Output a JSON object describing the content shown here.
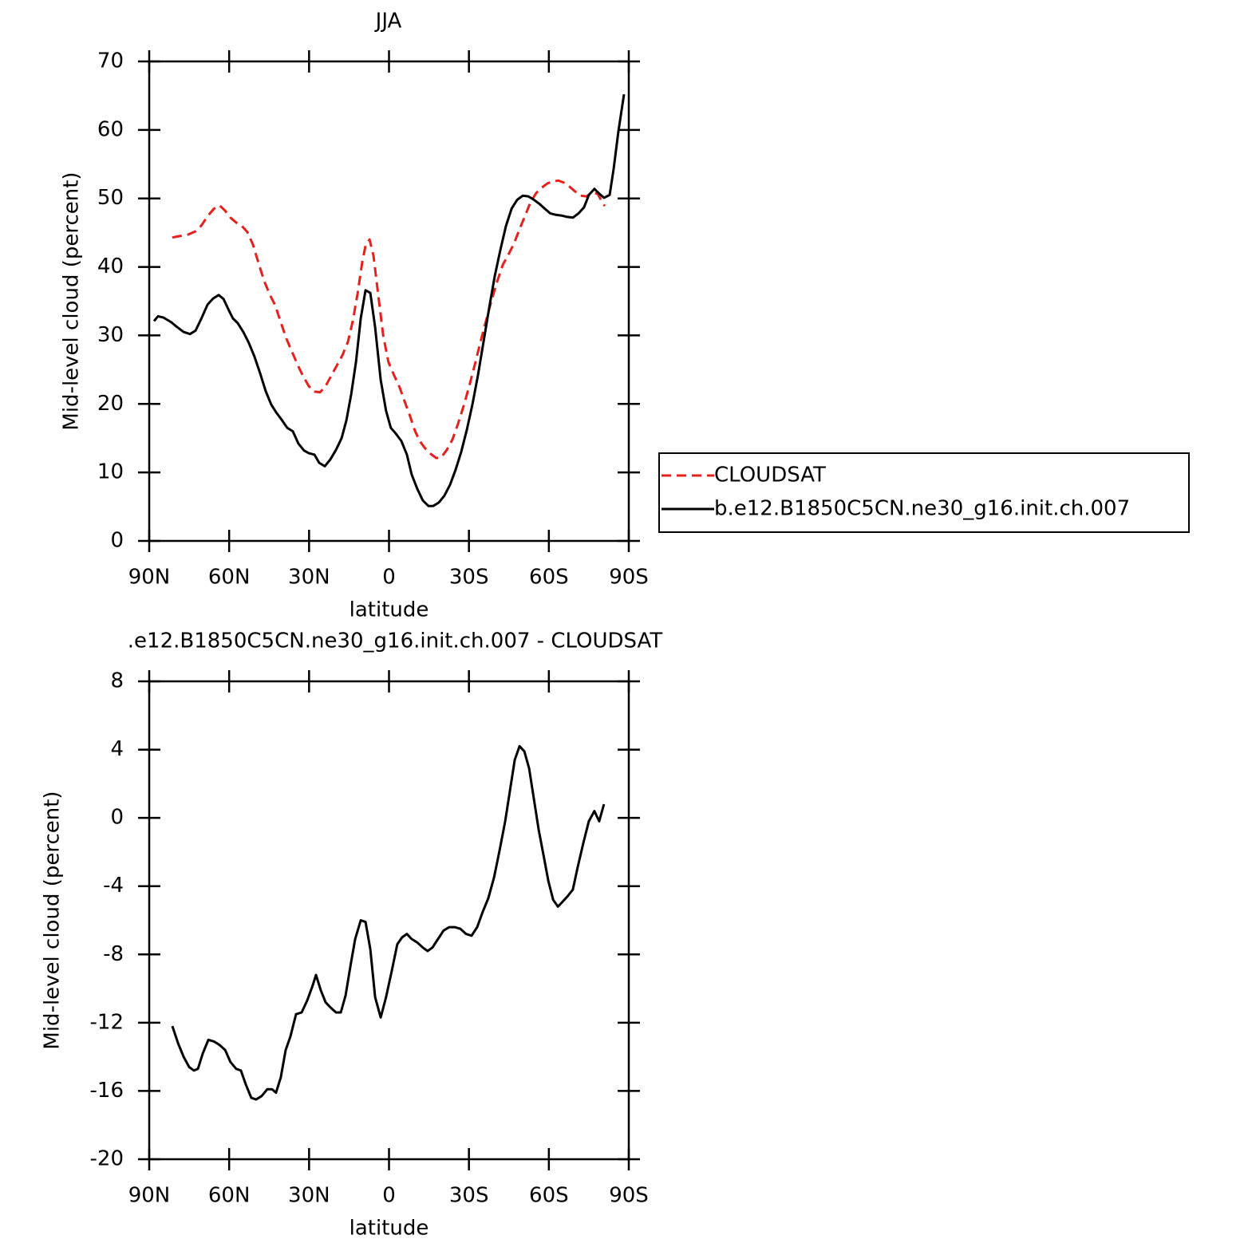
{
  "chart_data": [
    {
      "type": "line",
      "title": "JJA",
      "xlabel": "latitude",
      "ylabel": "Mid-level cloud (percent)",
      "xlim": [
        90,
        -90
      ],
      "xticks": [
        {
          "value": 90,
          "label": "90N"
        },
        {
          "value": 60,
          "label": "60N"
        },
        {
          "value": 30,
          "label": "30N"
        },
        0,
        {
          "value": -30,
          "label": "30S"
        },
        {
          "value": -60,
          "label": "60S"
        },
        {
          "value": -90,
          "label": "90S"
        }
      ],
      "ylim": [
        0,
        70
      ],
      "yticks": [
        0,
        10,
        20,
        30,
        40,
        50,
        60,
        70
      ],
      "legend": "right",
      "series": [
        {
          "name": "CLOUDSAT",
          "color": "#e8201c",
          "dash": "dashed",
          "x": [
            81.3,
            78.6,
            75.6,
            72.6,
            70.5,
            68.1,
            65.7,
            63.6,
            61.5,
            59.5,
            57.4,
            55.3,
            53.2,
            51.1,
            49.0,
            46.9,
            44.8,
            42.7,
            40.6,
            38.5,
            36.4,
            34.3,
            32.2,
            30.1,
            28.0,
            25.9,
            23.8,
            21.7,
            19.6,
            17.5,
            15.4,
            13.6,
            11.8,
            10.0,
            8.8,
            7.3,
            5.8,
            4.0,
            2.2,
            0.2,
            -1.9,
            -4.0,
            -6.1,
            -7.9,
            -9.7,
            -11.5,
            -13.6,
            -15.7,
            -17.7,
            -19.6,
            -21.7,
            -23.8,
            -25.9,
            -28.0,
            -30.1,
            -32.2,
            -34.3,
            -36.4,
            -38.5,
            -40.6,
            -42.7,
            -44.8,
            -46.9,
            -49.0,
            -51.1,
            -53.2,
            -55.3,
            -57.4,
            -59.5,
            -61.6,
            -63.6,
            -65.7,
            -67.8,
            -69.9,
            -72.0,
            -74.1,
            -76.2,
            -78.3,
            -80.1,
            -81.0
          ],
          "values": [
            44.3,
            44.5,
            44.7,
            45.2,
            46.0,
            47.4,
            48.5,
            49.0,
            48.2,
            47.2,
            46.5,
            46.0,
            45.1,
            43.3,
            40.6,
            38.0,
            36.0,
            34.4,
            31.9,
            29.5,
            27.6,
            25.7,
            24.0,
            22.6,
            21.8,
            21.7,
            22.6,
            24.1,
            25.6,
            27.1,
            29.1,
            32.1,
            36.1,
            40.8,
            43.1,
            44.0,
            41.6,
            35.8,
            30.0,
            26.1,
            24.2,
            22.4,
            20.1,
            18.2,
            16.1,
            14.6,
            13.5,
            12.7,
            12.1,
            12.2,
            13.3,
            14.8,
            17.1,
            19.7,
            22.6,
            25.7,
            29.0,
            32.1,
            35.1,
            37.9,
            40.3,
            41.8,
            43.4,
            45.5,
            47.5,
            49.5,
            50.8,
            51.6,
            52.2,
            52.5,
            52.6,
            52.3,
            51.7,
            51.0,
            50.4,
            50.3,
            50.8,
            50.7,
            49.4,
            48.9
          ]
        },
        {
          "name": "b.e12.B1850C5CN.ne30_g16.init.ch.007",
          "color": "#000000",
          "dash": "solid",
          "x": [
            88.2,
            86.7,
            84.6,
            81.6,
            79.5,
            77.1,
            74.7,
            72.6,
            70.5,
            68.1,
            66.0,
            63.9,
            62.1,
            60.4,
            58.6,
            56.8,
            54.7,
            52.6,
            50.5,
            48.4,
            46.3,
            44.2,
            42.4,
            40.3,
            38.2,
            36.1,
            34.0,
            31.9,
            30.1,
            28.0,
            26.2,
            24.1,
            22.0,
            19.9,
            17.8,
            16.0,
            14.2,
            12.4,
            10.6,
            8.8,
            7.0,
            5.2,
            3.1,
            1.1,
            -0.7,
            -2.5,
            -4.6,
            -6.7,
            -8.5,
            -10.6,
            -12.7,
            -14.8,
            -16.6,
            -18.7,
            -20.8,
            -22.9,
            -25.0,
            -27.1,
            -29.2,
            -31.3,
            -33.4,
            -35.5,
            -37.6,
            -39.7,
            -41.8,
            -43.9,
            -46.0,
            -48.1,
            -50.2,
            -52.3,
            -54.4,
            -56.5,
            -58.5,
            -60.6,
            -62.7,
            -64.8,
            -66.9,
            -69.0,
            -71.1,
            -73.2,
            -75.0,
            -77.1,
            -78.9,
            -80.7,
            -82.8,
            -84.3,
            -86.1,
            -88.2
          ],
          "values": [
            32.1,
            32.8,
            32.6,
            31.9,
            31.2,
            30.5,
            30.2,
            30.7,
            32.4,
            34.5,
            35.4,
            35.9,
            35.3,
            33.9,
            32.5,
            31.8,
            30.5,
            28.9,
            26.9,
            24.5,
            21.9,
            19.9,
            18.8,
            17.7,
            16.5,
            16.0,
            14.2,
            13.2,
            12.8,
            12.6,
            11.4,
            10.9,
            11.9,
            13.3,
            15.0,
            17.6,
            21.4,
            26.1,
            32.5,
            36.6,
            36.2,
            31.2,
            23.5,
            19.0,
            16.5,
            15.7,
            14.6,
            12.6,
            9.7,
            7.6,
            5.9,
            5.1,
            5.1,
            5.6,
            6.6,
            8.2,
            10.4,
            13.0,
            16.2,
            19.9,
            24.2,
            29.1,
            34.0,
            38.7,
            42.5,
            46.0,
            48.5,
            49.8,
            50.4,
            50.3,
            49.8,
            49.2,
            48.5,
            47.8,
            47.6,
            47.5,
            47.3,
            47.2,
            47.8,
            48.7,
            50.5,
            51.4,
            50.7,
            50.1,
            50.5,
            54.3,
            59.8,
            65.2
          ]
        }
      ]
    },
    {
      "type": "line",
      "title": ".e12.B1850C5CN.ne30_g16.init.ch.007 - CLOUDSAT",
      "xlabel": "latitude",
      "ylabel": "Mid-level cloud (percent)",
      "xlim": [
        90,
        -90
      ],
      "xticks": [
        {
          "value": 90,
          "label": "90N"
        },
        {
          "value": 60,
          "label": "60N"
        },
        {
          "value": 30,
          "label": "30N"
        },
        0,
        {
          "value": -30,
          "label": "30S"
        },
        {
          "value": -60,
          "label": "60S"
        },
        {
          "value": -90,
          "label": "90S"
        }
      ],
      "ylim": [
        -20,
        8
      ],
      "yticks": [
        -20,
        -16,
        -12,
        -8,
        -4,
        0,
        4,
        8
      ],
      "color": "#000000",
      "x": [
        81.3,
        79.2,
        77.1,
        75.0,
        73.2,
        71.7,
        69.9,
        67.8,
        65.7,
        63.6,
        61.5,
        59.5,
        57.4,
        55.6,
        53.8,
        51.7,
        49.9,
        47.8,
        45.7,
        43.9,
        42.4,
        40.6,
        38.8,
        37.0,
        34.9,
        32.8,
        30.7,
        28.6,
        27.4,
        25.6,
        23.8,
        22.0,
        19.9,
        18.1,
        16.3,
        14.5,
        12.7,
        10.6,
        8.8,
        7.0,
        5.2,
        3.1,
        1.1,
        -1.0,
        -3.1,
        -4.9,
        -6.7,
        -8.5,
        -10.6,
        -12.7,
        -14.5,
        -16.3,
        -18.4,
        -20.5,
        -22.6,
        -24.7,
        -26.8,
        -28.9,
        -31.0,
        -33.1,
        -35.2,
        -37.3,
        -39.4,
        -41.5,
        -43.6,
        -45.4,
        -47.2,
        -49.0,
        -50.8,
        -52.6,
        -54.4,
        -56.2,
        -58.0,
        -59.8,
        -61.6,
        -63.4,
        -65.2,
        -67.0,
        -69.0,
        -70.8,
        -72.9,
        -75.0,
        -77.1,
        -78.9,
        -80.7
      ],
      "values": [
        -12.2,
        -13.2,
        -14.0,
        -14.6,
        -14.8,
        -14.7,
        -13.8,
        -13.0,
        -13.1,
        -13.3,
        -13.6,
        -14.3,
        -14.7,
        -14.8,
        -15.6,
        -16.4,
        -16.5,
        -16.3,
        -15.9,
        -15.9,
        -16.1,
        -15.2,
        -13.6,
        -12.8,
        -11.5,
        -11.4,
        -10.7,
        -9.8,
        -9.2,
        -10.1,
        -10.8,
        -11.1,
        -11.4,
        -11.4,
        -10.4,
        -8.7,
        -7.1,
        -6.0,
        -6.1,
        -7.7,
        -10.5,
        -11.7,
        -10.5,
        -9.0,
        -7.4,
        -7.0,
        -6.8,
        -7.1,
        -7.3,
        -7.6,
        -7.8,
        -7.6,
        -7.1,
        -6.6,
        -6.4,
        -6.4,
        -6.5,
        -6.8,
        -6.9,
        -6.4,
        -5.5,
        -4.7,
        -3.5,
        -1.9,
        -0.2,
        1.6,
        3.4,
        4.2,
        3.9,
        2.9,
        1.1,
        -0.7,
        -2.2,
        -3.7,
        -4.8,
        -5.2,
        -4.9,
        -4.6,
        -4.2,
        -2.9,
        -1.5,
        -0.2,
        0.4,
        -0.2,
        0.8
      ]
    }
  ]
}
